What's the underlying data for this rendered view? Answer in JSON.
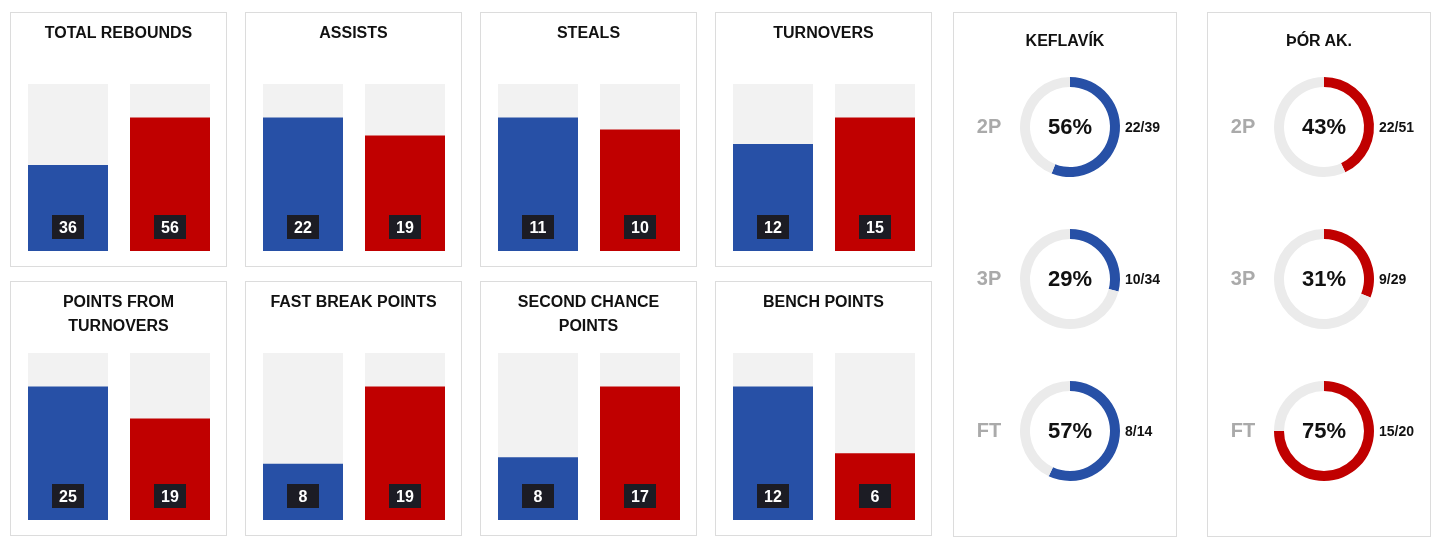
{
  "chart_data": [
    {
      "type": "bar",
      "title": "TOTAL REBOUNDS",
      "categories": [
        null,
        null
      ],
      "values": [
        36,
        56
      ],
      "colors": [
        "#2750a6",
        "#c00000"
      ],
      "data_labels": true
    },
    {
      "type": "bar",
      "title": "ASSISTS",
      "categories": [
        null,
        null
      ],
      "values": [
        22,
        19
      ],
      "colors": [
        "#2750a6",
        "#c00000"
      ],
      "data_labels": true
    },
    {
      "type": "bar",
      "title": "STEALS",
      "categories": [
        null,
        null
      ],
      "values": [
        11,
        10
      ],
      "colors": [
        "#2750a6",
        "#c00000"
      ],
      "data_labels": true
    },
    {
      "type": "bar",
      "title": "TURNOVERS",
      "categories": [
        null,
        null
      ],
      "values": [
        12,
        15
      ],
      "colors": [
        "#2750a6",
        "#c00000"
      ],
      "data_labels": true
    },
    {
      "type": "bar",
      "title": "POINTS FROM TURNOVERS",
      "categories": [
        null,
        null
      ],
      "values": [
        25,
        19
      ],
      "colors": [
        "#2750a6",
        "#c00000"
      ],
      "data_labels": true
    },
    {
      "type": "bar",
      "title": "FAST BREAK POINTS",
      "categories": [
        null,
        null
      ],
      "values": [
        8,
        19
      ],
      "colors": [
        "#2750a6",
        "#c00000"
      ],
      "data_labels": true
    },
    {
      "type": "bar",
      "title": "SECOND CHANCE POINTS",
      "categories": [
        null,
        null
      ],
      "values": [
        8,
        17
      ],
      "colors": [
        "#2750a6",
        "#c00000"
      ],
      "data_labels": true
    },
    {
      "type": "bar",
      "title": "BENCH POINTS",
      "categories": [
        null,
        null
      ],
      "values": [
        12,
        6
      ],
      "colors": [
        "#2750a6",
        "#c00000"
      ],
      "data_labels": true
    },
    {
      "type": "other",
      "title": "KEFLAVÍK"
    },
    {
      "type": "donut",
      "categories": [
        null,
        null
      ],
      "values": [
        56,
        44
      ],
      "colors": [
        "#2750a6",
        "#ebebeb"
      ],
      "value_labels": [
        "56%",
        null
      ],
      "annotations": [
        "2P",
        "22/39"
      ]
    },
    {
      "type": "donut",
      "categories": [
        null,
        null
      ],
      "values": [
        29,
        71
      ],
      "colors": [
        "#2750a6",
        "#ebebeb"
      ],
      "value_labels": [
        "29%",
        null
      ],
      "annotations": [
        "3P",
        "10/34"
      ]
    },
    {
      "type": "donut",
      "categories": [
        null,
        null
      ],
      "values": [
        57,
        43
      ],
      "colors": [
        "#2750a6",
        "#ebebeb"
      ],
      "value_labels": [
        "57%",
        null
      ],
      "annotations": [
        "FT",
        "8/14"
      ]
    },
    {
      "type": "other",
      "title": "ÞÓR AK."
    },
    {
      "type": "donut",
      "categories": [
        null,
        null
      ],
      "values": [
        43,
        57
      ],
      "colors": [
        "#c00000",
        "#ebebeb"
      ],
      "value_labels": [
        "43%",
        null
      ],
      "annotations": [
        "2P",
        "22/51"
      ]
    },
    {
      "type": "donut",
      "categories": [
        null,
        null
      ],
      "values": [
        31,
        69
      ],
      "colors": [
        "#c00000",
        "#ebebeb"
      ],
      "value_labels": [
        "31%",
        null
      ],
      "annotations": [
        "3P",
        "9/29"
      ]
    },
    {
      "type": "donut",
      "categories": [
        null,
        null
      ],
      "values": [
        75,
        25
      ],
      "colors": [
        "#c00000",
        "#ebebeb"
      ],
      "value_labels": [
        "75%",
        null
      ],
      "annotations": [
        "FT",
        "15/20"
      ]
    }
  ]
}
